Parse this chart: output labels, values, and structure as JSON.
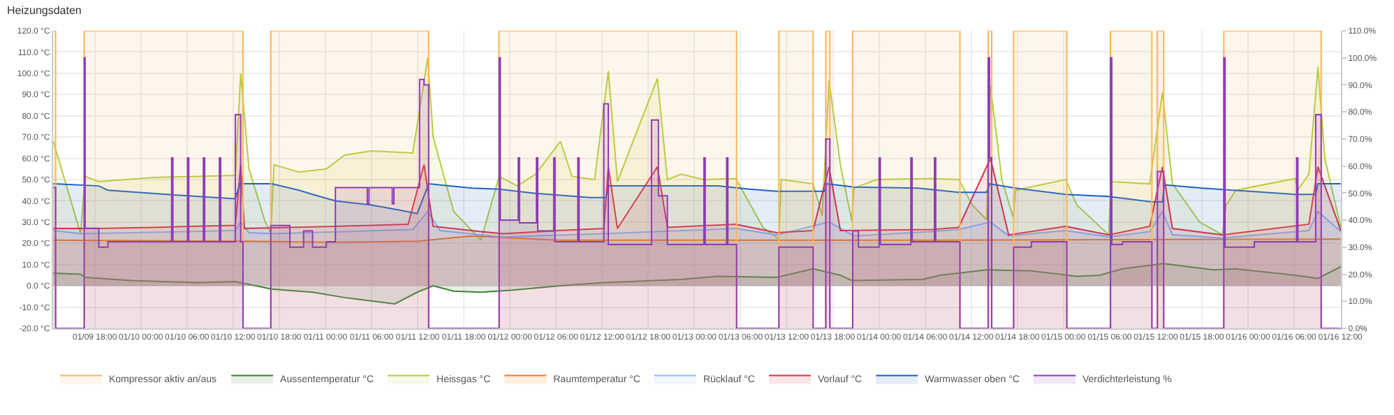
{
  "chart_data": {
    "type": "area",
    "title": "Heizungsdaten",
    "xlim": [
      "--01-09T12:35",
      "--01-16T12:05"
    ],
    "xticks": [
      {
        "value": "--01-09T18:00",
        "label": "01/09 18:00"
      },
      {
        "value": "--01-10T00:00",
        "label": "01/10 00:00"
      },
      {
        "value": "--01-10T06:00",
        "label": "01/10 06:00"
      },
      {
        "value": "--01-10T12:00",
        "label": "01/10 12:00"
      },
      {
        "value": "--01-10T18:00",
        "label": "01/10 18:00"
      },
      {
        "value": "--01-11T00:00",
        "label": "01/11 00:00"
      },
      {
        "value": "--01-11T06:00",
        "label": "01/11 06:00"
      },
      {
        "value": "--01-11T12:00",
        "label": "01/11 12:00"
      },
      {
        "value": "--01-11T18:00",
        "label": "01/11 18:00"
      },
      {
        "value": "--01-12T00:00",
        "label": "01/12 00:00"
      },
      {
        "value": "--01-12T06:00",
        "label": "01/12 06:00"
      },
      {
        "value": "--01-12T12:00",
        "label": "01/12 12:00"
      },
      {
        "value": "--01-12T18:00",
        "label": "01/12 18:00"
      },
      {
        "value": "--01-13T00:00",
        "label": "01/13 00:00"
      },
      {
        "value": "--01-13T06:00",
        "label": "01/13 06:00"
      },
      {
        "value": "--01-13T12:00",
        "label": "01/13 12:00"
      },
      {
        "value": "--01-13T18:00",
        "label": "01/13 18:00"
      },
      {
        "value": "--01-14T00:00",
        "label": "01/14 00:00"
      },
      {
        "value": "--01-14T06:00",
        "label": "01/14 06:00"
      },
      {
        "value": "--01-14T12:00",
        "label": "01/14 12:00"
      },
      {
        "value": "--01-14T18:00",
        "label": "01/14 18:00"
      },
      {
        "value": "--01-15T00:00",
        "label": "01/15 00:00"
      },
      {
        "value": "--01-15T06:00",
        "label": "01/15 06:00"
      },
      {
        "value": "--01-15T12:00",
        "label": "01/15 12:00"
      },
      {
        "value": "--01-15T18:00",
        "label": "01/15 18:00"
      },
      {
        "value": "--01-16T00:00",
        "label": "01/16 00:00"
      },
      {
        "value": "--01-16T06:00",
        "label": "01/16 06:00"
      },
      {
        "value": "--01-16T12:00",
        "label": "01/16 12:00"
      }
    ],
    "ylim": [
      -20,
      120
    ],
    "yticks": [
      {
        "value": -20,
        "label": "-20.0 °C"
      },
      {
        "value": -10,
        "label": "-10.0 °C"
      },
      {
        "value": 0,
        "label": "0.0 °C"
      },
      {
        "value": 10,
        "label": "10.0 °C"
      },
      {
        "value": 20,
        "label": "20.0 °C"
      },
      {
        "value": 30,
        "label": "30.0 °C"
      },
      {
        "value": 40,
        "label": "40.0 °C"
      },
      {
        "value": 50,
        "label": "50.0 °C"
      },
      {
        "value": 60,
        "label": "60.0 °C"
      },
      {
        "value": 70,
        "label": "70.0 °C"
      },
      {
        "value": 80,
        "label": "80.0 °C"
      },
      {
        "value": 90,
        "label": "90.0 °C"
      },
      {
        "value": 100,
        "label": "100.0 °C"
      },
      {
        "value": 110,
        "label": "110.0 °C"
      },
      {
        "value": 120,
        "label": "120.0 °C"
      }
    ],
    "y2lim": [
      0,
      110
    ],
    "y2ticks": [
      {
        "value": 0,
        "label": "0.0%"
      },
      {
        "value": 10,
        "label": "10.0%"
      },
      {
        "value": 20,
        "label": "20.0%"
      },
      {
        "value": 30,
        "label": "30.0%"
      },
      {
        "value": 40,
        "label": "40.0%"
      },
      {
        "value": 50,
        "label": "50.0%"
      },
      {
        "value": 60,
        "label": "60.0%"
      },
      {
        "value": 70,
        "label": "70.0%"
      },
      {
        "value": 80,
        "label": "80.0%"
      },
      {
        "value": 90,
        "label": "90.0%"
      },
      {
        "value": 100,
        "label": "100.0%"
      },
      {
        "value": 110,
        "label": "110.0%"
      }
    ],
    "grid": true,
    "legend": "bottom",
    "series": [
      {
        "name": "Kompressor aktiv an/aus",
        "type": "step",
        "axis": "y2",
        "color": "#ffb357",
        "x": [
          "--01-09T12:37",
          "--01-09T12:55",
          "--01-09T16:38",
          "--01-10T13:17",
          "--01-10T16:54",
          "--01-11T13:26",
          "--01-11T22:35",
          "--01-13T05:29",
          "--01-13T10:59",
          "--01-13T15:26",
          "--01-13T17:05",
          "--01-13T17:37",
          "--01-13T20:34",
          "--01-14T10:32",
          "--01-14T14:12",
          "--01-14T14:40",
          "--01-14T17:31",
          "--01-15T00:26",
          "--01-15T06:07",
          "--01-15T11:30",
          "--01-15T12:13",
          "--01-15T13:02",
          "--01-15T20:51",
          "--01-16T09:31",
          "--01-16T12:04"
        ],
        "values": [
          110,
          0,
          110,
          0,
          110,
          0,
          110,
          0,
          110,
          0,
          110,
          0,
          110,
          0,
          110,
          0,
          110,
          0,
          110,
          0,
          110,
          0,
          110,
          0,
          0
        ]
      },
      {
        "name": "Aussentemperatur °C",
        "color": "#37872d",
        "x": [
          "--01-09T12:37",
          "--01-09T16:10",
          "--01-09T16:45",
          "--01-09T22:41",
          "--01-10T07:33",
          "--01-10T12:17",
          "--01-10T17:01",
          "--01-10T22:20",
          "--01-11T02:29",
          "--01-11T09:02",
          "--01-11T11:57",
          "--01-11T14:01",
          "--01-11T16:41",
          "--01-11T20:14",
          "--01-12T00:22",
          "--01-12T06:17",
          "--01-12T12:13",
          "--01-12T22:16",
          "--01-13T03:00",
          "--01-13T10:41",
          "--01-13T15:26",
          "--01-13T18:59",
          "--01-13T20:28",
          "--01-14T05:38",
          "--01-14T07:59",
          "--01-14T13:55",
          "--01-14T19:49",
          "--01-15T01:44",
          "--01-15T04:42",
          "--01-15T07:40",
          "--01-15T12:59",
          "--01-15T19:29",
          "--01-15T22:27",
          "--01-16T06:08",
          "--01-16T09:06",
          "--01-16T12:04"
        ],
        "values": [
          6,
          5.5,
          4,
          2.5,
          1.5,
          2,
          -1.5,
          -3,
          -5.5,
          -8.5,
          -3,
          0,
          -2.5,
          -3,
          -2,
          0,
          1.5,
          3,
          4.5,
          4,
          8,
          5,
          2.5,
          3,
          5,
          7.5,
          7,
          4.5,
          5,
          8,
          10.5,
          7.5,
          8,
          5,
          3.5,
          9
        ]
      },
      {
        "name": "Heissgas °C",
        "color": "#b2cf3e",
        "x": [
          "--01-09T12:37",
          "--01-09T16:10",
          "--01-09T16:45",
          "--01-09T18:32",
          "--01-09T22:05",
          "--01-10T01:38",
          "--01-10T07:33",
          "--01-10T12:17",
          "--01-10T12:59",
          "--01-10T14:04",
          "--01-10T16:08",
          "--01-10T16:54",
          "--01-10T17:19",
          "--01-10T20:34",
          "--01-11T00:07",
          "--01-11T02:29",
          "--01-11T06:02",
          "--01-11T11:22",
          "--01-11T13:19",
          "--01-11T14:01",
          "--01-11T16:41",
          "--01-11T20:14",
          "--01-11T22:36",
          "--01-12T00:58",
          "--01-12T03:20",
          "--01-12T06:35",
          "--01-12T08:04",
          "--01-12T11:01",
          "--01-12T12:48",
          "--01-12T13:59",
          "--01-12T19:11",
          "--01-12T20:29",
          "--01-12T22:16",
          "--01-13T01:14",
          "--01-13T05:22",
          "--01-13T08:55",
          "--01-13T10:59",
          "--01-13T11:17",
          "--01-13T15:26",
          "--01-13T16:37",
          "--01-13T17:30",
          "--01-13T18:59",
          "--01-13T20:28",
          "--01-13T20:45",
          "--01-13T23:43",
          "--01-14T06:49",
          "--01-14T10:22",
          "--01-14T10:32",
          "--01-14T12:08",
          "--01-14T14:01",
          "--01-14T14:30",
          "--01-14T15:59",
          "--01-14T17:28",
          "--01-14T17:45",
          "--01-15T00:16",
          "--01-15T01:44",
          "--01-15T05:53",
          "--01-15T06:11",
          "--01-15T11:13",
          "--01-15T12:52",
          "--01-15T14:10",
          "--01-15T17:43",
          "--01-15T20:40",
          "--01-15T21:09",
          "--01-15T22:27",
          "--01-16T06:08",
          "--01-16T06:26",
          "--01-16T07:55",
          "--01-16T09:06",
          "--01-16T09:59",
          "--01-16T12:04"
        ],
        "values": [
          68,
          24.5,
          51.5,
          49,
          50,
          51,
          51.5,
          52,
          100,
          55,
          30.5,
          25,
          57,
          53.5,
          55,
          61.5,
          63.5,
          62.5,
          107.5,
          70,
          35,
          21.5,
          51.5,
          47,
          52.5,
          68,
          51.5,
          50,
          101,
          49,
          97.5,
          50,
          52.5,
          50,
          50.5,
          27.5,
          22,
          50,
          48,
          33,
          96.5,
          57,
          30.5,
          46,
          50,
          50.5,
          50,
          49,
          38,
          31,
          94,
          50,
          32,
          45,
          50,
          38,
          24,
          49,
          48,
          91,
          48,
          30,
          24,
          38,
          45,
          50.5,
          45,
          52.5,
          103,
          60,
          27.5
        ]
      },
      {
        "name": "Raumtemperatur °C",
        "color": "#ff780a",
        "x": [
          "--01-09T12:37",
          "--01-10T13:28",
          "--01-11T01:18",
          "--01-11T11:57",
          "--01-11T19:03",
          "--01-12T06:17",
          "--01-13T05:22",
          "--01-14T06:49",
          "--01-16T12:04"
        ],
        "values": [
          21.5,
          21,
          20.5,
          21,
          23.5,
          21.5,
          21.5,
          21.5,
          22
        ]
      },
      {
        "name": "Rücklauf °C",
        "color": "#8ab8ff",
        "x": [
          "--01-09T12:37",
          "--01-09T16:10",
          "--01-10T12:17",
          "--01-10T12:59",
          "--01-10T14:04",
          "--01-10T17:01",
          "--01-11T11:22",
          "--01-11T13:19",
          "--01-11T14:55",
          "--01-11T20:14",
          "--01-11T23:11",
          "--01-12T12:13",
          "--01-13T05:22",
          "--01-13T10:41",
          "--01-13T17:30",
          "--01-13T20:45",
          "--01-14T06:49",
          "--01-14T10:22",
          "--01-14T14:30",
          "--01-14T16:52",
          "--01-15T00:16",
          "--01-15T05:53",
          "--01-15T11:13",
          "--01-15T12:52",
          "--01-15T14:10",
          "--01-15T20:40",
          "--01-16T07:55",
          "--01-16T09:06",
          "--01-16T12:04"
        ],
        "values": [
          26,
          24.5,
          26,
          30,
          25,
          24.5,
          26.5,
          35,
          26,
          24,
          23,
          24.5,
          27,
          24,
          30,
          23.5,
          25.5,
          26.5,
          30,
          23.5,
          26,
          23,
          25.5,
          35,
          24,
          22.5,
          26,
          35,
          25.5
        ]
      },
      {
        "name": "Vorlauf °C",
        "color": "#e02f44",
        "x": [
          "--01-09T12:37",
          "--01-09T18:32",
          "--01-10T01:38",
          "--01-10T12:17",
          "--01-10T12:59",
          "--01-10T13:28",
          "--01-11T01:18",
          "--01-11T10:46",
          "--01-11T12:50",
          "--01-11T14:01",
          "--01-11T20:14",
          "--01-11T23:11",
          "--01-12T06:17",
          "--01-12T12:13",
          "--01-12T12:48",
          "--01-12T13:59",
          "--01-12T19:11",
          "--01-12T20:29",
          "--01-13T05:22",
          "--01-13T10:41",
          "--01-13T15:26",
          "--01-13T17:30",
          "--01-13T18:59",
          "--01-14T06:49",
          "--01-14T10:22",
          "--01-14T14:30",
          "--01-14T16:52",
          "--01-15T00:16",
          "--01-15T05:53",
          "--01-15T11:13",
          "--01-15T12:52",
          "--01-15T14:10",
          "--01-15T20:40",
          "--01-16T07:55",
          "--01-16T09:06",
          "--01-16T12:04"
        ],
        "values": [
          27,
          27,
          27.5,
          28.5,
          57,
          27,
          28,
          29,
          57,
          28,
          25.5,
          24.5,
          26,
          27,
          56,
          27,
          56,
          27.5,
          29,
          25,
          26,
          56,
          26,
          26.5,
          27.5,
          60,
          24,
          28,
          24,
          28,
          56,
          27,
          24,
          29,
          56,
          26
        ]
      },
      {
        "name": "Warmwasser oben °C",
        "color": "#1f60c4",
        "x": [
          "--01-09T12:37",
          "--01-09T18:32",
          "--01-09T19:43",
          "--01-10T03:25",
          "--01-10T07:33",
          "--01-10T12:17",
          "--01-10T12:53",
          "--01-10T17:01",
          "--01-10T20:34",
          "--01-10T22:20",
          "--01-11T01:18",
          "--01-11T06:02",
          "--01-11T09:02",
          "--01-11T11:57",
          "--01-11T13:26",
          "--01-11T19:03",
          "--01-11T22:36",
          "--01-12T03:20",
          "--01-12T10:26",
          "--01-12T12:30",
          "--01-12T12:48",
          "--01-13T03:00",
          "--01-13T07:08",
          "--01-13T10:41",
          "--01-13T16:55",
          "--01-13T17:12",
          "--01-13T20:45",
          "--01-14T05:02",
          "--01-14T10:22",
          "--01-14T14:01",
          "--01-14T14:23",
          "--01-14T17:45",
          "--01-15T00:16",
          "--01-15T05:53",
          "--01-15T11:30",
          "--01-15T12:52",
          "--01-15T13:06",
          "--01-15T18:01",
          "--01-16T06:08",
          "--01-16T08:48",
          "--01-16T09:06",
          "--01-16T12:04"
        ],
        "values": [
          48,
          47,
          45,
          43,
          42,
          41,
          48,
          48,
          45,
          43,
          40,
          38,
          36,
          34,
          48,
          46,
          45.5,
          43.5,
          41.5,
          41.5,
          47,
          47,
          45.5,
          44.5,
          44.5,
          48,
          46.5,
          46,
          44,
          44,
          48,
          46,
          43,
          42,
          39.5,
          39.5,
          47.5,
          46,
          43,
          43,
          48,
          48
        ]
      },
      {
        "name": "Verdichterleistung %",
        "type": "step",
        "axis": "y2",
        "color": "#8f3bb8",
        "x": [
          "--01-09T12:37",
          "--01-09T12:55",
          "--01-09T16:38",
          "--01-09T16:45",
          "--01-09T18:32",
          "--01-09T19:43",
          "--01-10T04:00",
          "--01-10T04:10",
          "--01-10T06:04",
          "--01-10T06:14",
          "--01-10T08:08",
          "--01-10T08:18",
          "--01-10T10:13",
          "--01-10T10:23",
          "--01-10T12:17",
          "--01-10T12:59",
          "--01-10T13:17",
          "--01-10T16:54",
          "--01-10T19:23",
          "--01-10T21:10",
          "--01-10T22:20",
          "--01-11T00:07",
          "--01-11T01:18",
          "--01-11T05:27",
          "--01-11T05:40",
          "--01-11T08:42",
          "--01-11T08:55",
          "--01-11T12:15",
          "--01-11T12:50",
          "--01-11T13:26",
          "--01-11T22:36",
          "--01-11T22:45",
          "--01-12T01:05",
          "--01-12T01:15",
          "--01-12T03:27",
          "--01-12T03:37",
          "--01-12T05:42",
          "--01-12T05:52",
          "--01-12T08:50",
          "--01-12T09:00",
          "--01-12T12:13",
          "--01-12T12:48",
          "--01-12T18:25",
          "--01-12T19:19",
          "--01-12T20:29",
          "--01-13T01:14",
          "--01-13T01:24",
          "--01-13T04:11",
          "--01-13T04:21",
          "--01-13T05:29",
          "--01-13T10:59",
          "--01-13T15:26",
          "--01-13T17:05",
          "--01-13T17:37",
          "--01-13T20:35",
          "--01-13T21:20",
          "--01-14T00:01",
          "--01-14T00:11",
          "--01-14T04:09",
          "--01-14T04:19",
          "--01-14T07:13",
          "--01-14T07:23",
          "--01-14T10:32",
          "--01-14T14:12",
          "--01-14T14:23",
          "--01-14T14:40",
          "--01-14T17:31",
          "--01-14T19:49",
          "--01-15T00:26",
          "--01-15T06:07",
          "--01-15T06:17",
          "--01-15T07:40",
          "--01-15T11:30",
          "--01-15T12:13",
          "--01-15T13:02",
          "--01-15T20:51",
          "--01-15T21:01",
          "--01-16T00:49",
          "--01-16T06:19",
          "--01-16T06:29",
          "--01-16T08:48",
          "--01-16T09:31",
          "--01-16T12:04"
        ],
        "values": [
          52,
          0,
          100,
          37,
          30,
          32,
          63,
          32,
          63,
          32,
          63,
          32,
          63,
          32,
          79,
          32,
          0,
          38,
          30,
          36,
          30,
          32,
          52,
          46,
          52,
          46,
          52,
          92,
          90,
          0,
          100,
          40,
          63,
          39,
          63,
          36,
          63,
          32,
          63,
          32,
          83,
          31,
          77,
          49,
          31,
          63,
          31,
          63,
          31,
          0,
          30,
          0,
          70,
          0,
          36,
          30,
          63,
          31,
          63,
          32,
          63,
          32,
          0,
          100,
          63,
          0,
          30,
          32,
          0,
          100,
          31,
          32,
          0,
          58,
          0,
          100,
          30,
          32,
          63,
          32,
          79,
          0,
          0
        ]
      }
    ]
  }
}
